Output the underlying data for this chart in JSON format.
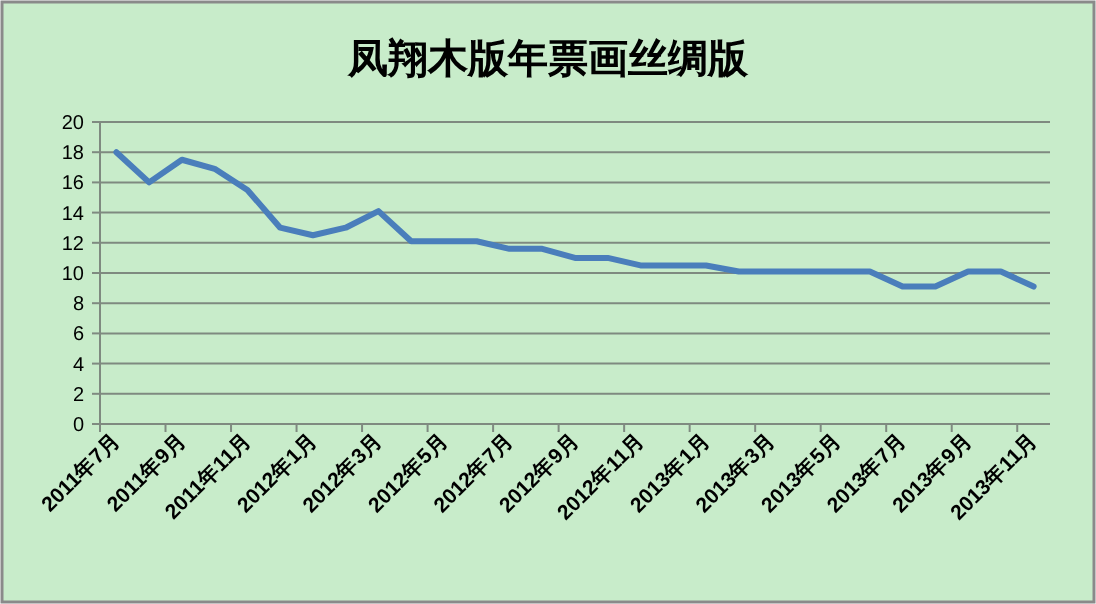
{
  "chart_data": {
    "type": "line",
    "title": "凤翔木版年票画丝绸版",
    "categories": [
      "2011年7月",
      null,
      "2011年9月",
      null,
      "2011年11月",
      null,
      "2012年1月",
      null,
      "2012年3月",
      null,
      "2012年5月",
      null,
      "2012年7月",
      null,
      "2012年9月",
      null,
      "2012年11月",
      null,
      "2013年1月",
      null,
      "2013年3月",
      null,
      "2013年5月",
      null,
      "2013年7月",
      null,
      "2013年9月",
      null,
      "2013年11月"
    ],
    "series": [
      {
        "color": "#4a7ebb",
        "values": [
          18,
          16,
          17.5,
          16.9,
          15.5,
          13,
          12.5,
          13,
          14.1,
          12.1,
          12.1,
          12.1,
          11.6,
          11.6,
          11,
          11,
          10.5,
          10.5,
          10.5,
          10.1,
          10.1,
          10.1,
          10.1,
          10.1,
          9.1,
          9.1,
          10.1,
          10.1,
          9.1
        ]
      }
    ],
    "ylim": [
      0,
      20
    ],
    "yticks": [
      0,
      2,
      4,
      6,
      8,
      10,
      12,
      14,
      16,
      18,
      20
    ],
    "grid": "y",
    "marker": "none",
    "line_style": "solid"
  }
}
